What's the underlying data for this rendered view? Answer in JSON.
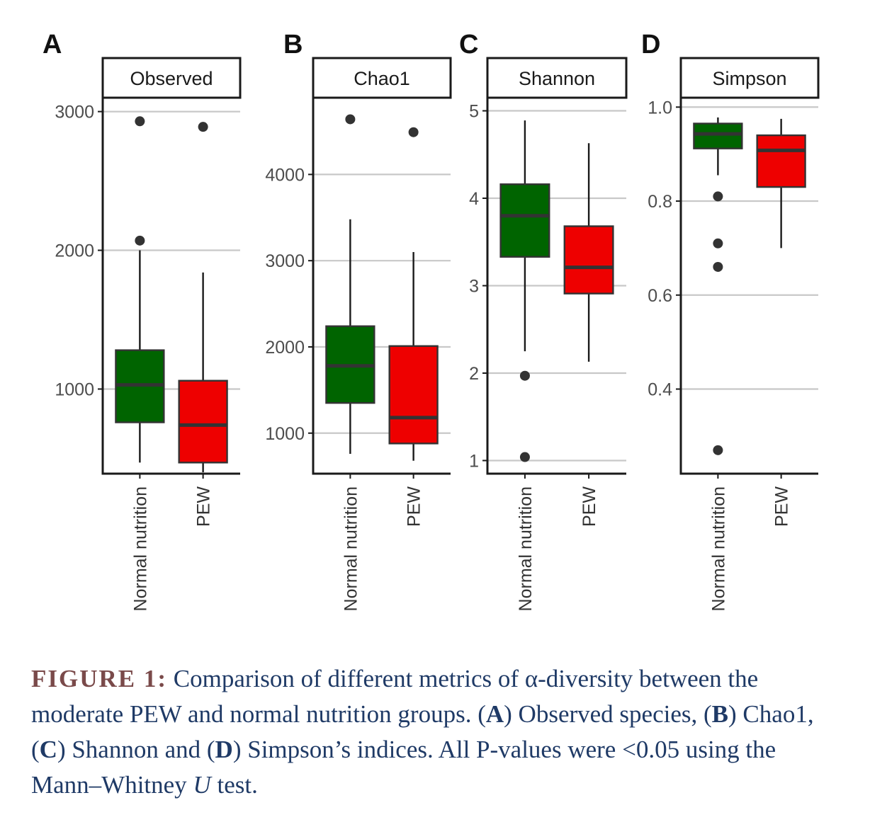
{
  "colors": {
    "normal": "#006400",
    "pew": "#ee0000",
    "grid": "#c8c8c8",
    "axis": "#1a1a1a",
    "outlier": "#333333",
    "caption_text": "#1f3a66",
    "caption_label": "#7a4a4a"
  },
  "chart_data": [
    {
      "type": "box",
      "panel": "A",
      "title": "Observed",
      "categories": [
        "Normal nutrition",
        "PEW"
      ],
      "yticks": [
        1000,
        2000,
        3000
      ],
      "ylim": [
        390,
        3100
      ],
      "boxes": [
        {
          "name": "Normal nutrition",
          "whisker_low": 470,
          "q1": 760,
          "median": 1030,
          "q3": 1280,
          "whisker_high": 2000,
          "outliers": [
            2070,
            2930
          ]
        },
        {
          "name": "PEW",
          "whisker_low": 400,
          "q1": 470,
          "median": 740,
          "q3": 1060,
          "whisker_high": 1840,
          "outliers": [
            2890
          ]
        }
      ]
    },
    {
      "type": "box",
      "panel": "B",
      "title": "Chao1",
      "categories": [
        "Normal nutrition",
        "PEW"
      ],
      "yticks": [
        1000,
        2000,
        3000,
        4000
      ],
      "ylim": [
        530,
        4890
      ],
      "boxes": [
        {
          "name": "Normal nutrition",
          "whisker_low": 760,
          "q1": 1350,
          "median": 1780,
          "q3": 2240,
          "whisker_high": 3480,
          "outliers": [
            4640
          ]
        },
        {
          "name": "PEW",
          "whisker_low": 680,
          "q1": 880,
          "median": 1180,
          "q3": 2010,
          "whisker_high": 3100,
          "outliers": [
            4490
          ]
        }
      ]
    },
    {
      "type": "box",
      "panel": "C",
      "title": "Shannon",
      "categories": [
        "Normal nutrition",
        "PEW"
      ],
      "yticks": [
        1,
        2,
        3,
        4,
        5
      ],
      "ylim": [
        0.85,
        5.15
      ],
      "boxes": [
        {
          "name": "Normal nutrition",
          "whisker_low": 2.25,
          "q1": 3.33,
          "median": 3.8,
          "q3": 4.16,
          "whisker_high": 4.89,
          "outliers": [
            1.97,
            1.04
          ]
        },
        {
          "name": "PEW",
          "whisker_low": 2.13,
          "q1": 2.91,
          "median": 3.21,
          "q3": 3.68,
          "whisker_high": 4.63,
          "outliers": []
        }
      ]
    },
    {
      "type": "box",
      "panel": "D",
      "title": "Simpson",
      "categories": [
        "Normal nutrition",
        "PEW"
      ],
      "yticks": [
        0.4,
        0.6,
        0.8,
        1.0
      ],
      "ytick_labels": [
        "0.4",
        "0.6",
        "0.8",
        "1.0"
      ],
      "ylim": [
        0.22,
        1.02
      ],
      "boxes": [
        {
          "name": "Normal nutrition",
          "whisker_low": 0.855,
          "q1": 0.912,
          "median": 0.943,
          "q3": 0.965,
          "whisker_high": 0.978,
          "outliers": [
            0.81,
            0.71,
            0.66,
            0.27
          ]
        },
        {
          "name": "PEW",
          "whisker_low": 0.7,
          "q1": 0.83,
          "median": 0.908,
          "q3": 0.94,
          "whisker_high": 0.975,
          "outliers": []
        }
      ]
    }
  ],
  "caption": {
    "label": "FIGURE 1:",
    "text_1": " Comparison of different metrics of α-diversity between the moderate PEW and normal nutrition groups. (",
    "a": "A",
    "text_2": ") Observed species, (",
    "b": "B",
    "text_3": ") Chao1, (",
    "c": "C",
    "text_4": ") Shannon and (",
    "d": "D",
    "text_5": ") Simpson’s indices. All P-values were <0.05 using the Mann–Whitney ",
    "u": "U",
    "text_6": " test."
  }
}
